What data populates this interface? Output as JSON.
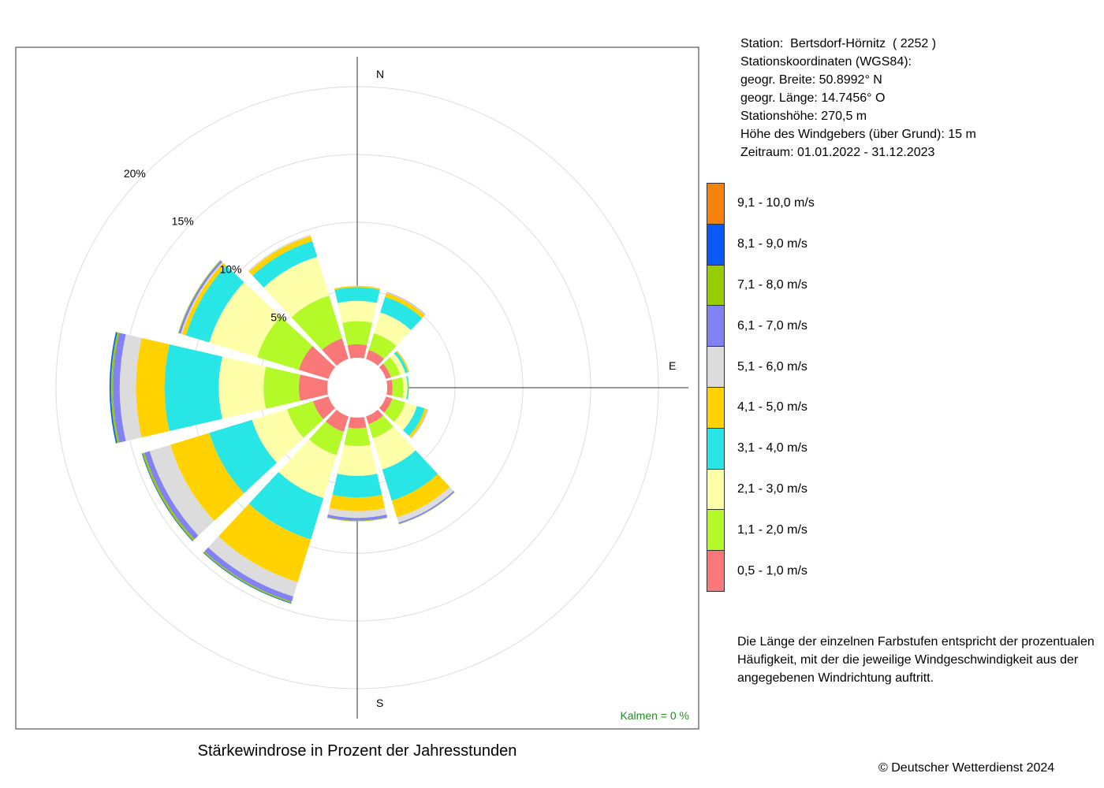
{
  "station": {
    "lines": [
      "Station:  Bertsdorf-Hörnitz  ( 2252 )",
      "Stationskoordinaten (WGS84):",
      "geogr. Breite: 50.8992° N",
      "geogr. Länge: 14.7456° O",
      "Stationshöhe: 270,5 m",
      "Höhe des Windgebers (über Grund): 15 m",
      "Zeitraum: 01.01.2022 - 31.12.2023"
    ]
  },
  "legend": {
    "classes": [
      {
        "label": "9,1 - 10,0 m/s",
        "color": "#F5820A"
      },
      {
        "label": "8,1 - 9,0 m/s",
        "color": "#0A5AFA"
      },
      {
        "label": "7,1 - 8,0 m/s",
        "color": "#96CD00"
      },
      {
        "label": "6,1 - 7,0 m/s",
        "color": "#8282F5"
      },
      {
        "label": "5,1 - 6,0 m/s",
        "color": "#DCDCDC"
      },
      {
        "label": "4,1 - 5,0 m/s",
        "color": "#FFD200"
      },
      {
        "label": "3,1 - 4,0 m/s",
        "color": "#28E6E6"
      },
      {
        "label": "2,1 - 3,0 m/s",
        "color": "#FFFFAA"
      },
      {
        "label": "1,1 - 2,0 m/s",
        "color": "#B4FA28"
      },
      {
        "label": "0,5 - 1,0 m/s",
        "color": "#FA7878"
      }
    ]
  },
  "note": "Die Länge der einzelnen Farbstufen entspricht der prozentualen Häufigkeit, mit der die jeweilige Windgeschwindigkeit aus der angegebenen Windrichtung auftritt.",
  "caption": "Stärkewindrose in Prozent der Jahresstunden",
  "copyright": "© Deutscher Wetterdienst  2024",
  "chart_data": {
    "type": "windrose",
    "compass": {
      "north": "N",
      "east": "E",
      "south": "S"
    },
    "ring_labels": [
      "5%",
      "10%",
      "15%",
      "20%"
    ],
    "ring_values": [
      5,
      10,
      15,
      20
    ],
    "calm": "Kalmen  =  0 %",
    "sector_width_deg": 30,
    "speed_classes": [
      "0,5 - 1,0 m/s",
      "1,1 - 2,0 m/s",
      "2,1 - 3,0 m/s",
      "3,1 - 4,0 m/s",
      "4,1 - 5,0 m/s",
      "5,1 - 6,0 m/s",
      "6,1 - 7,0 m/s",
      "7,1 - 8,0 m/s",
      "8,1 - 9,0 m/s",
      "9,1 - 10,0 m/s"
    ],
    "sectors": [
      {
        "direction_deg": 0,
        "values": [
          1.0,
          1.7,
          1.5,
          1.0,
          0.1,
          0,
          0,
          0,
          0,
          0
        ]
      },
      {
        "direction_deg": 30,
        "values": [
          0.7,
          1.3,
          1.6,
          1.2,
          0.3,
          0.05,
          0.03,
          0,
          0,
          0
        ]
      },
      {
        "direction_deg": 60,
        "values": [
          0.4,
          0.7,
          0.4,
          0.2,
          0.1,
          0.02,
          0,
          0,
          0,
          0
        ]
      },
      {
        "direction_deg": 90,
        "values": [
          0.4,
          0.8,
          0.3,
          0.1,
          0.02,
          0,
          0,
          0,
          0,
          0
        ]
      },
      {
        "direction_deg": 120,
        "values": [
          0.5,
          1.0,
          0.9,
          0.6,
          0.2,
          0.05,
          0.02,
          0,
          0,
          0
        ]
      },
      {
        "direction_deg": 150,
        "values": [
          0.6,
          1.1,
          2.4,
          2.4,
          1.3,
          0.4,
          0.1,
          0.03,
          0,
          0
        ]
      },
      {
        "direction_deg": 180,
        "values": [
          0.8,
          1.3,
          2.2,
          1.6,
          1.0,
          0.5,
          0.2,
          0.05,
          0,
          0
        ]
      },
      {
        "direction_deg": 210,
        "values": [
          1.2,
          1.8,
          3.3,
          3.2,
          3.3,
          1.1,
          0.4,
          0.1,
          0.05,
          0
        ]
      },
      {
        "direction_deg": 240,
        "values": [
          1.2,
          2.0,
          2.7,
          3.3,
          3.0,
          1.6,
          0.4,
          0.15,
          0.05,
          0
        ]
      },
      {
        "direction_deg": 270,
        "values": [
          2.1,
          2.6,
          3.3,
          4.0,
          2.1,
          1.2,
          0.5,
          0.15,
          0.1,
          0
        ]
      },
      {
        "direction_deg": 300,
        "values": [
          2.3,
          3.2,
          3.7,
          1.8,
          0.3,
          0.1,
          0.15,
          0.05,
          0,
          0
        ]
      },
      {
        "direction_deg": 330,
        "values": [
          1.6,
          3.3,
          3.0,
          1.2,
          0.4,
          0.1,
          0,
          0,
          0,
          0
        ]
      }
    ]
  }
}
